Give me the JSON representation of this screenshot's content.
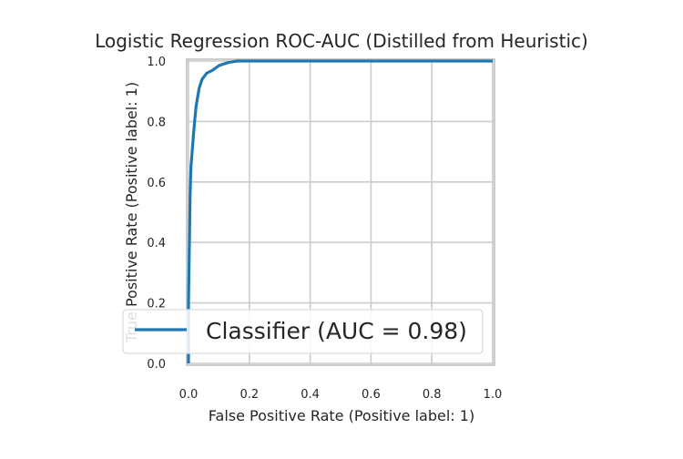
{
  "chart_data": {
    "type": "line",
    "title": "Logistic Regression ROC-AUC (Distilled from Heuristic)",
    "xlabel": "False Positive Rate (Positive label: 1)",
    "ylabel": "True Positive Rate (Positive label: 1)",
    "xlim": [
      0.0,
      1.0
    ],
    "ylim": [
      0.0,
      1.0
    ],
    "xticks": [
      "0.0",
      "0.2",
      "0.4",
      "0.6",
      "0.8",
      "1.0"
    ],
    "yticks": [
      "0.0",
      "0.2",
      "0.4",
      "0.6",
      "0.8",
      "1.0"
    ],
    "grid": true,
    "legend_position": "lower-right",
    "series": [
      {
        "name": "Classifier (AUC = 0.98)",
        "color": "#1f77b4",
        "x": [
          0.0,
          0.0,
          0.003,
          0.005,
          0.008,
          0.012,
          0.016,
          0.02,
          0.025,
          0.03,
          0.035,
          0.045,
          0.06,
          0.08,
          0.1,
          0.13,
          0.16,
          0.2,
          0.4,
          0.6,
          0.8,
          1.0
        ],
        "y": [
          0.0,
          0.2,
          0.4,
          0.55,
          0.65,
          0.7,
          0.75,
          0.8,
          0.85,
          0.88,
          0.91,
          0.94,
          0.96,
          0.97,
          0.985,
          0.995,
          1.0,
          1.0,
          1.0,
          1.0,
          1.0,
          1.0
        ]
      }
    ]
  }
}
